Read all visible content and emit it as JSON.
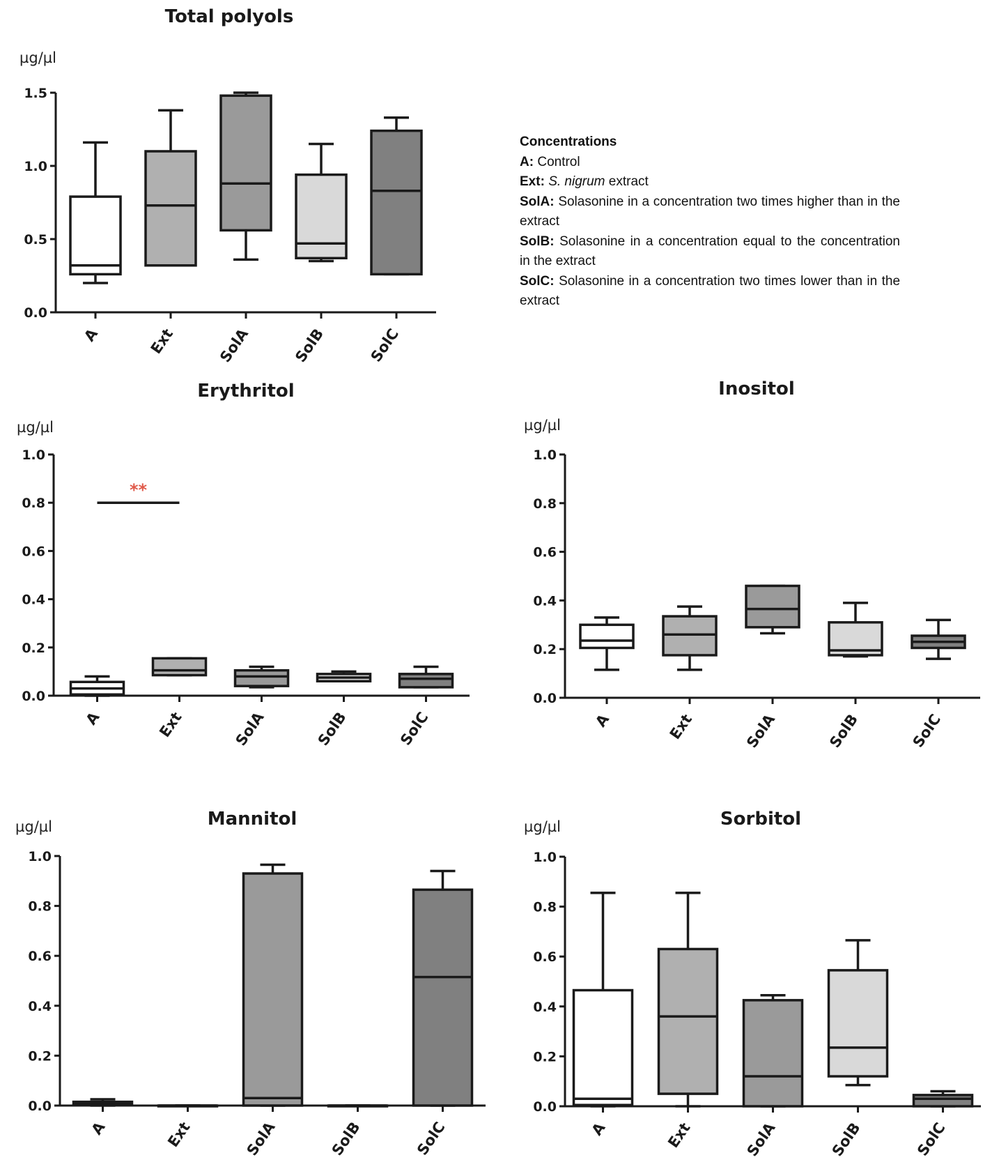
{
  "chart_data": [
    {
      "type": "box",
      "title": "Total polyols",
      "ylabel": "µg/µl",
      "ylim": [
        0,
        1.5
      ],
      "yticks": [
        "0.0",
        "0.5",
        "1.0",
        "1.5"
      ],
      "categories": [
        "A",
        "Ext",
        "SolA",
        "SolB",
        "SolC"
      ],
      "boxes": [
        {
          "min": 0.2,
          "q1": 0.26,
          "median": 0.32,
          "q3": 0.79,
          "max": 1.16
        },
        {
          "min": 0.32,
          "q1": 0.32,
          "median": 0.73,
          "q3": 1.1,
          "max": 1.38
        },
        {
          "min": 0.36,
          "q1": 0.56,
          "median": 0.88,
          "q3": 1.48,
          "max": 1.5
        },
        {
          "min": 0.35,
          "q1": 0.37,
          "median": 0.47,
          "q3": 0.94,
          "max": 1.15
        },
        {
          "min": 0.26,
          "q1": 0.26,
          "median": 0.83,
          "q3": 1.24,
          "max": 1.33
        }
      ]
    },
    {
      "type": "box",
      "title": "Erythritol",
      "ylabel": "µg/µl",
      "ylim": [
        0,
        1.0
      ],
      "yticks": [
        "0.0",
        "0.2",
        "0.4",
        "0.6",
        "0.8",
        "1.0"
      ],
      "categories": [
        "A",
        "Ext",
        "SolA",
        "SolB",
        "SolC"
      ],
      "boxes": [
        {
          "min": 0.0,
          "q1": 0.005,
          "median": 0.03,
          "q3": 0.057,
          "max": 0.08
        },
        {
          "min": 0.085,
          "q1": 0.085,
          "median": 0.105,
          "q3": 0.155,
          "max": 0.155
        },
        {
          "min": 0.035,
          "q1": 0.04,
          "median": 0.08,
          "q3": 0.105,
          "max": 0.12
        },
        {
          "min": 0.06,
          "q1": 0.06,
          "median": 0.075,
          "q3": 0.09,
          "max": 0.1
        },
        {
          "min": 0.035,
          "q1": 0.035,
          "median": 0.07,
          "q3": 0.09,
          "max": 0.12
        }
      ],
      "annotation": {
        "text": "**",
        "from": "A",
        "to": "Ext",
        "y": 0.8
      }
    },
    {
      "type": "box",
      "title": "Inositol",
      "ylabel": "µg/µl",
      "ylim": [
        0,
        1.0
      ],
      "yticks": [
        "0.0",
        "0.2",
        "0.4",
        "0.6",
        "0.8",
        "1.0"
      ],
      "categories": [
        "A",
        "Ext",
        "SolA",
        "SolB",
        "SolC"
      ],
      "boxes": [
        {
          "min": 0.115,
          "q1": 0.205,
          "median": 0.235,
          "q3": 0.3,
          "max": 0.33
        },
        {
          "min": 0.115,
          "q1": 0.175,
          "median": 0.26,
          "q3": 0.335,
          "max": 0.375
        },
        {
          "min": 0.265,
          "q1": 0.29,
          "median": 0.365,
          "q3": 0.46,
          "max": 0.46
        },
        {
          "min": 0.17,
          "q1": 0.175,
          "median": 0.195,
          "q3": 0.31,
          "max": 0.39
        },
        {
          "min": 0.16,
          "q1": 0.205,
          "median": 0.23,
          "q3": 0.255,
          "max": 0.32
        }
      ]
    },
    {
      "type": "box",
      "title": "Mannitol",
      "ylabel": "µg/µl",
      "ylim": [
        0,
        1.0
      ],
      "yticks": [
        "0.0",
        "0.2",
        "0.4",
        "0.6",
        "0.8",
        "1.0"
      ],
      "categories": [
        "A",
        "Ext",
        "SolA",
        "SolB",
        "SolC"
      ],
      "boxes": [
        {
          "min": 0.0,
          "q1": 0.003,
          "median": 0.01,
          "q3": 0.015,
          "max": 0.025
        },
        {
          "min": 0.0,
          "q1": 0.0,
          "median": 0.0,
          "q3": 0.0,
          "max": 0.0
        },
        {
          "min": 0.0,
          "q1": 0.0,
          "median": 0.03,
          "q3": 0.93,
          "max": 0.965
        },
        {
          "min": 0.0,
          "q1": 0.0,
          "median": 0.0,
          "q3": 0.0,
          "max": 0.0
        },
        {
          "min": 0.0,
          "q1": 0.0,
          "median": 0.515,
          "q3": 0.865,
          "max": 0.94
        }
      ]
    },
    {
      "type": "box",
      "title": "Sorbitol",
      "ylabel": "µg/µl",
      "ylim": [
        0,
        1.0
      ],
      "yticks": [
        "0.0",
        "0.2",
        "0.4",
        "0.6",
        "0.8",
        "1.0"
      ],
      "categories": [
        "A",
        "Ext",
        "SolA",
        "SolB",
        "SolC"
      ],
      "boxes": [
        {
          "min": 0.0,
          "q1": 0.005,
          "median": 0.03,
          "q3": 0.465,
          "max": 0.855
        },
        {
          "min": 0.0,
          "q1": 0.05,
          "median": 0.36,
          "q3": 0.63,
          "max": 0.855
        },
        {
          "min": 0.0,
          "q1": 0.0,
          "median": 0.12,
          "q3": 0.425,
          "max": 0.445
        },
        {
          "min": 0.085,
          "q1": 0.12,
          "median": 0.235,
          "q3": 0.545,
          "max": 0.665
        },
        {
          "min": 0.0,
          "q1": 0.0,
          "median": 0.03,
          "q3": 0.045,
          "max": 0.06
        }
      ]
    }
  ],
  "colors": {
    "A": "#ffffff",
    "Ext": "#b0b0b0",
    "SolA": "#9a9a9a",
    "SolB": "#d9d9d9",
    "SolC": "#808080",
    "significance": "#e05a4a",
    "stroke": "#1a1a1a"
  },
  "legend": {
    "title": "Concentrations",
    "items": [
      {
        "key": "A:",
        "text": "Control"
      },
      {
        "key": "Ext:",
        "italic": "S. nigrum",
        "text": "extract"
      },
      {
        "key": "SolA:",
        "text": "Solasonine in a concentration two times higher than in the extract"
      },
      {
        "key": "SolB:",
        "text": "Solasonine in a concentration  equal to the concentration in the extract"
      },
      {
        "key": "SolC:",
        "text": "Solasonine in a concentration two times lower than in the extract"
      }
    ]
  }
}
